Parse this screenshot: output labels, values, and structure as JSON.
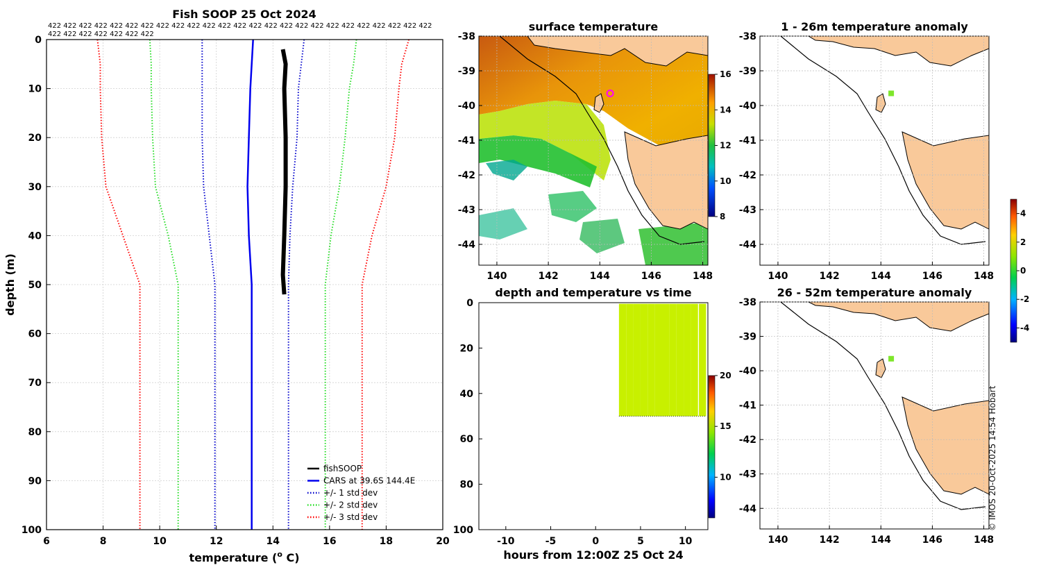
{
  "profile_chart": {
    "type": "line",
    "title": "Fish SOOP 25 Oct 2024",
    "xlabel": "temperature (",
    "xlabel_sup": "o",
    "xlabel_end": " C)",
    "ylabel": "depth (m)",
    "xlim": [
      6,
      20
    ],
    "ylim": [
      0,
      100
    ],
    "x_ticks": [
      6,
      8,
      10,
      12,
      14,
      16,
      18,
      20
    ],
    "y_ticks": [
      0,
      10,
      20,
      30,
      40,
      50,
      60,
      70,
      80,
      90,
      100
    ],
    "header_line1": "422 422 422 422 422 422 422 422 422 422 422 422 422 422 422 422 422 422 422 422 422 422 422 422 422",
    "header_line2": "422 422 422 422 422 422 422",
    "series": [
      {
        "name": "fishSOOP",
        "color": "#000000",
        "style": "solid",
        "width": 6,
        "points": [
          [
            14.35,
            2
          ],
          [
            14.45,
            5
          ],
          [
            14.4,
            10
          ],
          [
            14.45,
            20
          ],
          [
            14.45,
            30
          ],
          [
            14.4,
            40
          ],
          [
            14.35,
            48
          ],
          [
            14.4,
            52
          ]
        ]
      },
      {
        "name": "CARS at 39.6S 144.4E",
        "color": "#0000ee",
        "style": "solid",
        "width": 2.5,
        "points": [
          [
            13.3,
            0
          ],
          [
            13.25,
            5
          ],
          [
            13.2,
            10
          ],
          [
            13.15,
            20
          ],
          [
            13.1,
            30
          ],
          [
            13.15,
            40
          ],
          [
            13.25,
            50
          ],
          [
            13.25,
            100
          ]
        ]
      },
      {
        "name": "+/- 1 std dev",
        "color": "#0000cc",
        "style": "dot",
        "width": 2,
        "points": [
          [
            11.5,
            0
          ],
          [
            11.5,
            5
          ],
          [
            11.5,
            10
          ],
          [
            11.5,
            20
          ],
          [
            11.55,
            30
          ],
          [
            11.75,
            40
          ],
          [
            11.95,
            50
          ],
          [
            11.95,
            100
          ]
        ],
        "points2": [
          [
            15.1,
            0
          ],
          [
            15.0,
            5
          ],
          [
            14.9,
            10
          ],
          [
            14.85,
            20
          ],
          [
            14.7,
            30
          ],
          [
            14.6,
            40
          ],
          [
            14.55,
            50
          ],
          [
            14.55,
            100
          ]
        ]
      },
      {
        "name": "+/- 2 std dev",
        "color": "#22dd22",
        "style": "dot",
        "width": 2,
        "points": [
          [
            9.65,
            0
          ],
          [
            9.7,
            5
          ],
          [
            9.7,
            10
          ],
          [
            9.75,
            20
          ],
          [
            9.85,
            30
          ],
          [
            10.3,
            40
          ],
          [
            10.65,
            50
          ],
          [
            10.65,
            100
          ]
        ],
        "points2": [
          [
            16.95,
            0
          ],
          [
            16.85,
            5
          ],
          [
            16.7,
            10
          ],
          [
            16.55,
            20
          ],
          [
            16.35,
            30
          ],
          [
            16.05,
            40
          ],
          [
            15.85,
            50
          ],
          [
            15.85,
            100
          ]
        ]
      },
      {
        "name": "+/- 3 std dev",
        "color": "#ff0000",
        "style": "dot",
        "width": 2,
        "points": [
          [
            7.8,
            0
          ],
          [
            7.9,
            5
          ],
          [
            7.9,
            10
          ],
          [
            7.95,
            20
          ],
          [
            8.1,
            30
          ],
          [
            8.7,
            40
          ],
          [
            9.3,
            50
          ],
          [
            9.3,
            100
          ]
        ],
        "points2": [
          [
            18.8,
            0
          ],
          [
            18.55,
            5
          ],
          [
            18.45,
            10
          ],
          [
            18.3,
            20
          ],
          [
            18.0,
            30
          ],
          [
            17.5,
            40
          ],
          [
            17.15,
            50
          ],
          [
            17.15,
            100
          ]
        ]
      }
    ]
  },
  "sst_map": {
    "type": "heatmap",
    "title": "surface temperature",
    "lon_ticks": [
      140,
      142,
      144,
      146,
      148
    ],
    "lat_ticks": [
      -38,
      -39,
      -40,
      -41,
      -42,
      -43,
      -44
    ],
    "xlim": [
      139.3,
      148.2
    ],
    "ylim": [
      -44.6,
      -38
    ],
    "colorbar_ticks": [
      8,
      10,
      12,
      14,
      16
    ],
    "colorbar_range": [
      8,
      16
    ],
    "marker": {
      "lon": 144.4,
      "lat": -39.65
    }
  },
  "depth_time": {
    "type": "scatter",
    "title": "depth and temperature vs time",
    "xlabel": "hours from 12:00Z 25 Oct 24",
    "xlim": [
      -13,
      12.5
    ],
    "ylim": [
      0,
      100
    ],
    "x_ticks": [
      -10,
      -5,
      0,
      5,
      10
    ],
    "y_ticks": [
      0,
      20,
      40,
      60,
      80,
      100
    ],
    "colorbar_ticks": [
      10,
      15,
      20
    ],
    "colorbar_range": [
      6,
      20
    ],
    "casts_hours": [
      2.6,
      3.4,
      4.2,
      5.0,
      5.8,
      6.6,
      7.4,
      8.2,
      9.0,
      9.8,
      10.6,
      11.5
    ],
    "max_depth": 50,
    "point_color": "#c8f000"
  },
  "anomaly_maps": [
    {
      "title": "1 - 26m temperature anomaly",
      "marker_color": "#7ee62b"
    },
    {
      "title": "26 - 52m temperature anomaly",
      "marker_color": "#7ee62b"
    }
  ],
  "anomaly_common": {
    "lon_ticks": [
      140,
      142,
      144,
      146,
      148
    ],
    "lat_ticks": [
      -38,
      -39,
      -40,
      -41,
      -42,
      -43,
      -44
    ],
    "xlim": [
      139.3,
      148.2
    ],
    "ylim": [
      -44.6,
      -38
    ],
    "marker": {
      "lon": 144.4,
      "lat": -39.65
    }
  },
  "anomaly_colorbar": {
    "ticks": [
      -4,
      -2,
      0,
      2,
      4
    ],
    "range": [
      -5,
      5
    ]
  },
  "colors": {
    "land": "#f9c99a",
    "axis": "#000000",
    "grid": "#c8c8c8"
  },
  "credit": "© IMOS 20-Oct-2025 14:54 Hobart"
}
